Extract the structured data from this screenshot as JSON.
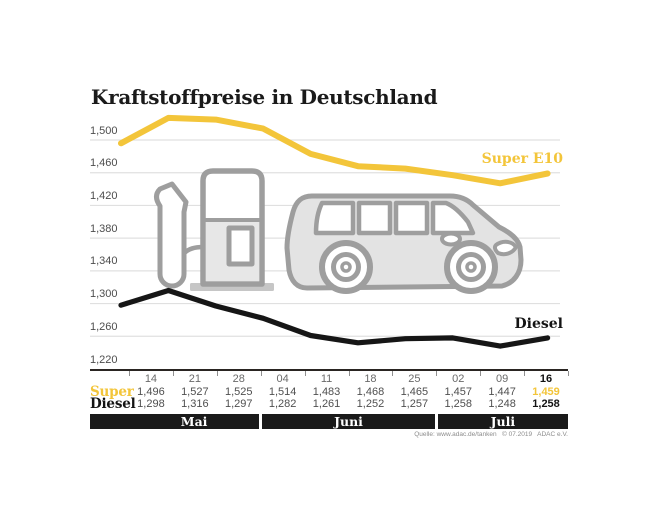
{
  "title": "Kraftstoffpreise in Deutschland",
  "source_note": "Quelle: www.adac.de/tanken   © 07.2019   ADAC e.V.",
  "colors": {
    "super_yellow": "#F3C53A",
    "diesel_black": "#161616",
    "grid_gray": "#E0E0E0",
    "axis_text": "#4D4D4D",
    "icon_stroke": "#9E9E9E",
    "icon_fill": "#E3E3E3",
    "month_bar_bg": "#1A1A1A"
  },
  "chart_data": {
    "type": "line",
    "title": "Kraftstoffpreise in Deutschland",
    "x_tick_labels": [
      "14",
      "21",
      "28",
      "04",
      "11",
      "18",
      "25",
      "02",
      "09",
      "16"
    ],
    "month_groups": [
      {
        "label": "Mai",
        "span": 3
      },
      {
        "label": "Juni",
        "span": 4
      },
      {
        "label": "Juli",
        "span": 3
      }
    ],
    "y_tick_labels": [
      "1,500",
      "1,460",
      "1,420",
      "1,380",
      "1,340",
      "1,300",
      "1,260",
      "1,220"
    ],
    "y_tick_values": [
      1500,
      1460,
      1420,
      1380,
      1340,
      1300,
      1260,
      1220
    ],
    "ylim": [
      1220,
      1540
    ],
    "grid": true,
    "legend_position": "right-on-line",
    "series": [
      {
        "name": "Super E10",
        "key": "super",
        "color": "#F3C53A",
        "values": [
          1496,
          1527,
          1525,
          1514,
          1483,
          1468,
          1465,
          1457,
          1447,
          1459
        ]
      },
      {
        "name": "Diesel",
        "key": "diesel",
        "color": "#161616",
        "values": [
          1298,
          1316,
          1297,
          1282,
          1261,
          1252,
          1257,
          1258,
          1248,
          1258
        ]
      }
    ],
    "table": {
      "rows": [
        {
          "label": "Super",
          "values": [
            "1,496",
            "1,527",
            "1,525",
            "1,514",
            "1,483",
            "1,468",
            "1,465",
            "1,457",
            "1,447",
            "1,459"
          ]
        },
        {
          "label": "Diesel",
          "values": [
            "1,298",
            "1,316",
            "1,297",
            "1,282",
            "1,261",
            "1,252",
            "1,257",
            "1,258",
            "1,248",
            "1,258"
          ]
        }
      ]
    }
  }
}
